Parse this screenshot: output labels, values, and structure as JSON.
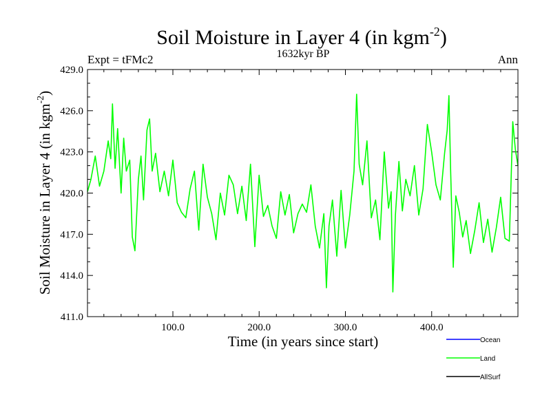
{
  "chart_data": {
    "type": "line",
    "title_main": "Soil Moisture in Layer 4 (in kgm",
    "title_exp": "-2",
    "title_close": ")",
    "subtitle": "1632kyr BP",
    "left_label": "Expt = tFMc2",
    "right_label": "Ann",
    "xlabel": "Time (in years since start)",
    "ylabel_main": "Soil Moisture in Layer 4 (in kgm",
    "ylabel_exp": "-2",
    "ylabel_close": ")",
    "xlim": [
      1,
      500
    ],
    "ylim": [
      411.0,
      429.0
    ],
    "xticks": [
      100,
      200,
      300,
      400
    ],
    "xtick_labels": [
      "100.0",
      "200.0",
      "300.0",
      "400.0"
    ],
    "yticks": [
      411,
      414,
      417,
      420,
      423,
      426,
      429
    ],
    "ytick_labels": [
      "411.0",
      "414.0",
      "417.0",
      "420.0",
      "423.0",
      "426.0",
      "429.0"
    ],
    "legend": [
      {
        "name": "Ocean",
        "color": "#0000ff"
      },
      {
        "name": "Land",
        "color": "#00ff00"
      },
      {
        "name": "AllSurf",
        "color": "#000000"
      }
    ],
    "series": [
      {
        "name": "Land",
        "color": "#00ff00",
        "x": [
          1,
          5,
          10,
          15,
          20,
          25,
          28,
          30,
          33,
          36,
          40,
          43,
          46,
          50,
          53,
          56,
          60,
          63,
          66,
          70,
          73,
          76,
          80,
          85,
          90,
          95,
          100,
          105,
          110,
          115,
          120,
          125,
          130,
          135,
          140,
          145,
          150,
          155,
          160,
          165,
          170,
          175,
          180,
          185,
          190,
          195,
          200,
          205,
          210,
          215,
          220,
          225,
          230,
          235,
          240,
          245,
          250,
          255,
          260,
          265,
          270,
          275,
          278,
          281,
          285,
          290,
          295,
          300,
          305,
          310,
          313,
          316,
          320,
          325,
          330,
          335,
          340,
          345,
          350,
          353,
          355,
          358,
          362,
          366,
          370,
          375,
          380,
          385,
          390,
          395,
          400,
          405,
          410,
          415,
          418,
          420,
          422,
          425,
          428,
          432,
          436,
          440,
          445,
          450,
          455,
          460,
          465,
          470,
          475,
          480,
          485,
          490,
          494,
          497,
          500
        ],
        "values": [
          420.1,
          421.0,
          422.7,
          420.5,
          421.6,
          423.8,
          422.5,
          426.5,
          421.8,
          424.7,
          420.0,
          424.0,
          421.6,
          422.4,
          416.8,
          415.8,
          421.0,
          422.7,
          419.5,
          424.6,
          425.4,
          421.6,
          422.9,
          420.1,
          421.6,
          419.8,
          422.4,
          419.3,
          418.6,
          418.2,
          420.3,
          421.6,
          417.3,
          422.1,
          419.7,
          418.5,
          416.6,
          420.0,
          418.4,
          421.3,
          420.6,
          418.5,
          420.5,
          418.0,
          422.1,
          416.1,
          421.3,
          418.3,
          419.1,
          417.6,
          416.7,
          420.1,
          418.4,
          419.9,
          417.1,
          418.5,
          419.2,
          418.6,
          420.6,
          417.6,
          416.0,
          418.5,
          413.1,
          417.6,
          419.5,
          415.4,
          420.2,
          416.0,
          418.4,
          421.6,
          427.2,
          422.1,
          420.6,
          423.8,
          418.2,
          419.5,
          416.6,
          423.0,
          418.9,
          420.1,
          412.8,
          418.4,
          422.3,
          418.7,
          421.0,
          419.8,
          422.0,
          418.4,
          420.3,
          425.0,
          423.0,
          420.6,
          419.5,
          422.9,
          424.6,
          427.1,
          421.6,
          414.6,
          419.8,
          418.6,
          416.8,
          418.0,
          415.6,
          417.3,
          419.3,
          416.4,
          418.1,
          415.7,
          417.5,
          419.7,
          416.7,
          416.5,
          425.2,
          423.2,
          422.0
        ]
      }
    ]
  }
}
